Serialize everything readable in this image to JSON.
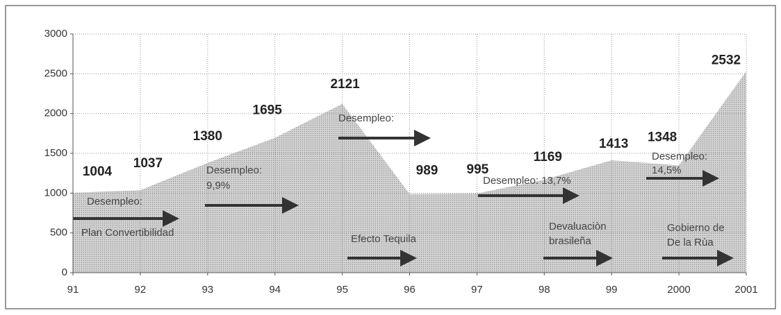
{
  "chart_data": {
    "type": "area",
    "categories": [
      "91",
      "92",
      "93",
      "94",
      "95",
      "96",
      "97",
      "98",
      "99",
      "2000",
      "2001"
    ],
    "values": [
      1004,
      1037,
      1380,
      1695,
      2121,
      989,
      995,
      1169,
      1413,
      1348,
      2532
    ],
    "color": "#c4c4c4",
    "ylim": [
      0,
      3000
    ],
    "yticks": [
      0,
      500,
      1000,
      1500,
      2000,
      2500,
      3000
    ],
    "grid": true,
    "annotations": [
      "Desempleo:",
      "Plan Convertibilidad",
      "Desempleo:",
      "9,9%",
      "Desempleo:",
      "Efecto Tequila",
      "Desempleo: 13,7%",
      "Devaluaciòn",
      "brasileña",
      "Desempleo:",
      "14,5%",
      "Gobierno de",
      "De la Rùa"
    ]
  }
}
